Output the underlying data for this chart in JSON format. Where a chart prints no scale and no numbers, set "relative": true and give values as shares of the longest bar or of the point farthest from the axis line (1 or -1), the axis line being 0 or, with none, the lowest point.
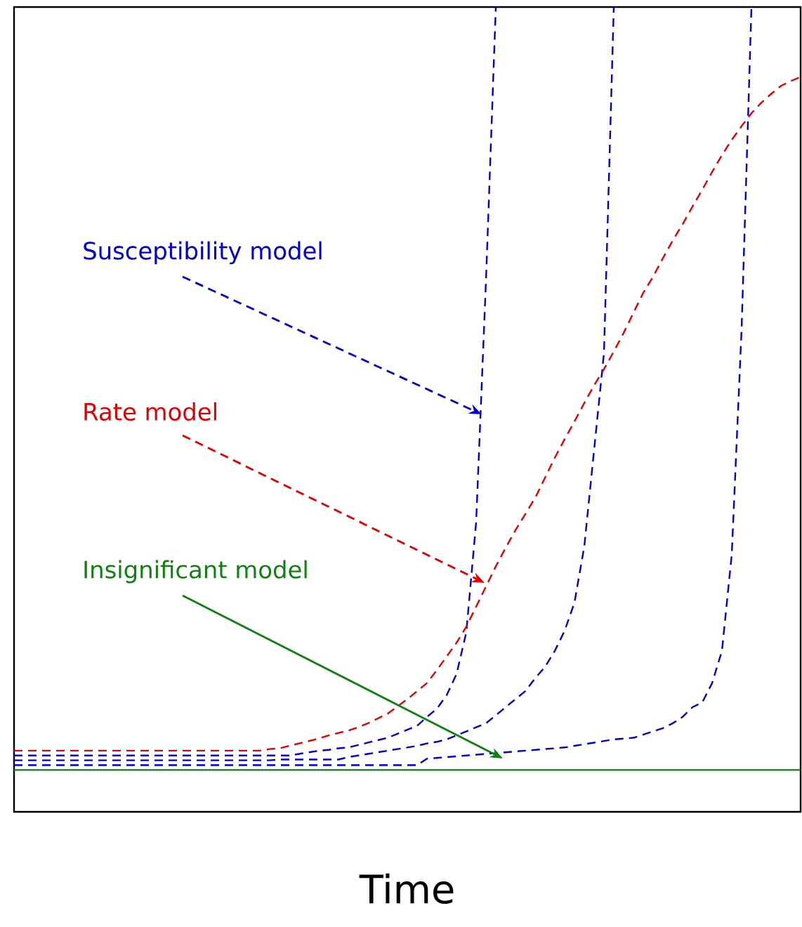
{
  "chart_data": {
    "type": "line",
    "relative": true,
    "xlabel": "Time",
    "categories": [
      null,
      null,
      null,
      null,
      null,
      null,
      null,
      null,
      null,
      null,
      null,
      null,
      null,
      null,
      null,
      null,
      null,
      null,
      null,
      null,
      null,
      null,
      null,
      null,
      null,
      null,
      null,
      null,
      null,
      null,
      null,
      null,
      null,
      null,
      null,
      null,
      null,
      null,
      null,
      null,
      null,
      null,
      null,
      null,
      null,
      null,
      null,
      null,
      null,
      null,
      null,
      null,
      null,
      null,
      null,
      null,
      null,
      null,
      null,
      null,
      null,
      null,
      null,
      null,
      null,
      null,
      null,
      null,
      null,
      null,
      null,
      null,
      null,
      null,
      null,
      null,
      null,
      null,
      null,
      null,
      null
    ],
    "annotations": [
      "Susceptibility model",
      "Rate model",
      "Insignificant model"
    ],
    "series": [
      {
        "color": "#0000cc",
        "line_style": "dashed",
        "values": [
          0.07,
          0.07,
          0.07,
          0.07,
          0.07,
          0.07,
          0.07,
          0.07,
          0.07,
          0.07,
          0.07,
          0.07,
          0.07,
          0.07,
          0.07,
          0.07,
          0.07,
          0.07,
          0.07,
          0.07,
          0.07,
          0.07,
          0.07,
          0.07,
          0.07,
          0.07,
          0.07,
          0.07,
          0.07,
          0.072,
          0.074,
          0.076,
          0.077,
          0.079,
          0.08,
          0.083,
          0.086,
          0.089,
          0.092,
          0.097,
          0.102,
          0.107,
          0.118,
          0.128,
          0.145,
          0.171,
          0.223,
          0.36,
          0.66,
          1,
          null,
          null,
          null,
          null,
          null,
          null,
          null,
          null,
          null,
          null,
          null,
          null,
          null,
          null,
          null,
          null,
          null,
          null,
          null,
          null,
          null,
          null,
          null,
          null,
          null,
          null,
          null,
          null,
          null,
          null,
          null
        ]
      },
      {
        "color": "#0000cc",
        "line_style": "dashed",
        "values": [
          0.064,
          0.064,
          0.064,
          0.064,
          0.064,
          0.064,
          0.064,
          0.064,
          0.064,
          0.064,
          0.064,
          0.064,
          0.064,
          0.064,
          0.064,
          0.064,
          0.064,
          0.064,
          0.064,
          0.064,
          0.064,
          0.064,
          0.064,
          0.064,
          0.064,
          0.064,
          0.064,
          0.065,
          0.065,
          0.065,
          0.065,
          0.065,
          0.065,
          0.065,
          0.068,
          0.07,
          0.072,
          0.074,
          0.076,
          0.078,
          0.08,
          0.082,
          0.085,
          0.087,
          0.09,
          0.095,
          0.1,
          0.105,
          0.11,
          0.12,
          0.13,
          0.14,
          0.15,
          0.166,
          0.18,
          0.2,
          0.225,
          0.26,
          0.33,
          0.45,
          0.57,
          1,
          null,
          null,
          null,
          null,
          null,
          null,
          null,
          null,
          null,
          null,
          null,
          null,
          null,
          null,
          null,
          null,
          null,
          null,
          null
        ]
      },
      {
        "color": "#0000cc",
        "line_style": "dashed",
        "values": [
          0.058,
          0.058,
          0.058,
          0.058,
          0.058,
          0.058,
          0.058,
          0.058,
          0.058,
          0.058,
          0.058,
          0.058,
          0.058,
          0.058,
          0.058,
          0.058,
          0.058,
          0.058,
          0.058,
          0.058,
          0.058,
          0.058,
          0.058,
          0.058,
          0.058,
          0.058,
          0.058,
          0.058,
          0.058,
          0.058,
          0.058,
          0.058,
          0.058,
          0.058,
          0.058,
          0.058,
          0.058,
          0.058,
          0.058,
          0.058,
          0.058,
          0.058,
          0.066,
          0.067,
          0.068,
          0.069,
          0.07,
          0.071,
          0.072,
          0.073,
          0.074,
          0.075,
          0.076,
          0.077,
          0.078,
          0.079,
          0.08,
          0.082,
          0.084,
          0.086,
          0.088,
          0.09,
          0.091,
          0.092,
          0.096,
          0.1,
          0.104,
          0.11,
          0.118,
          0.13,
          0.136,
          0.16,
          0.2,
          0.32,
          0.6,
          1,
          null,
          null,
          null,
          null,
          null
        ]
      },
      {
        "color": "#e00000",
        "line_style": "dashed",
        "values": [
          0.076,
          0.076,
          0.076,
          0.076,
          0.076,
          0.076,
          0.076,
          0.076,
          0.076,
          0.076,
          0.076,
          0.076,
          0.076,
          0.076,
          0.076,
          0.076,
          0.076,
          0.076,
          0.076,
          0.076,
          0.076,
          0.076,
          0.076,
          0.076,
          0.076,
          0.076,
          0.078,
          0.079,
          0.082,
          0.085,
          0.088,
          0.091,
          0.095,
          0.098,
          0.101,
          0.105,
          0.11,
          0.116,
          0.122,
          0.131,
          0.14,
          0.15,
          0.16,
          0.176,
          0.193,
          0.21,
          0.23,
          0.255,
          0.28,
          0.305,
          0.328,
          0.35,
          0.37,
          0.39,
          0.415,
          0.44,
          0.463,
          0.485,
          0.508,
          0.53,
          0.55,
          0.572,
          0.595,
          0.62,
          0.645,
          0.665,
          0.688,
          0.71,
          0.73,
          0.752,
          0.773,
          0.795,
          0.816,
          0.835,
          0.852,
          0.868,
          0.881,
          0.892,
          0.902,
          0.908,
          0.913
        ]
      },
      {
        "color": "#108010",
        "line_style": "solid",
        "values": [
          0.052,
          0.052,
          0.052,
          0.052,
          0.052,
          0.052,
          0.052,
          0.052,
          0.052,
          0.052,
          0.052,
          0.052,
          0.052,
          0.052,
          0.052,
          0.052,
          0.052,
          0.052,
          0.052,
          0.052,
          0.052,
          0.052,
          0.052,
          0.052,
          0.052,
          0.052,
          0.052,
          0.052,
          0.052,
          0.052,
          0.052,
          0.052,
          0.052,
          0.052,
          0.052,
          0.052,
          0.052,
          0.052,
          0.052,
          0.052,
          0.052,
          0.052,
          0.052,
          0.052,
          0.052,
          0.052,
          0.052,
          0.052,
          0.052,
          0.052,
          0.052,
          0.052,
          0.052,
          0.052,
          0.052,
          0.052,
          0.052,
          0.052,
          0.052,
          0.052,
          0.052,
          0.052,
          0.052,
          0.052,
          0.052,
          0.052,
          0.052,
          0.052,
          0.052,
          0.052,
          0.052,
          0.052,
          0.052,
          0.052,
          0.052,
          0.052,
          0.052,
          0.052,
          0.052,
          0.052,
          0.052
        ]
      }
    ]
  }
}
